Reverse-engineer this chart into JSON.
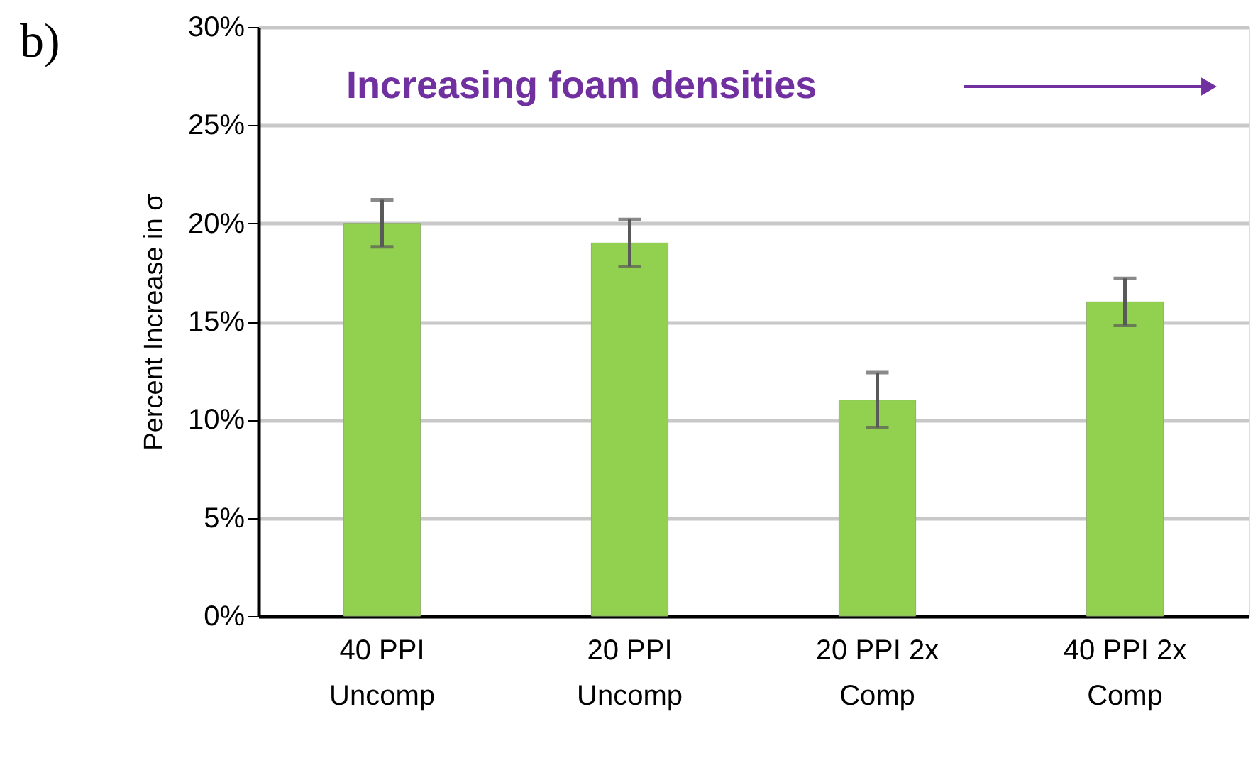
{
  "chart_data": {
    "type": "bar",
    "annotations": [
      "b)",
      "Increasing foam densities"
    ],
    "ylabel": "Percent Increase in σ",
    "categories": [
      "40 PPI Uncomp",
      "20 PPI Uncomp",
      "20 PPI 2x Comp",
      "40 PPI 2x Comp"
    ],
    "values": [
      20,
      19,
      11,
      16
    ],
    "errors": [
      1.2,
      1.2,
      1.4,
      1.2
    ],
    "color": "#92d050",
    "ylim": [
      0,
      30
    ],
    "yticks": [
      {
        "value": 0,
        "label": "0%"
      },
      {
        "value": 5,
        "label": "5%"
      },
      {
        "value": 10,
        "label": "10%"
      },
      {
        "value": 15,
        "label": "15%"
      },
      {
        "value": 20,
        "label": "20%"
      },
      {
        "value": 25,
        "label": "25%"
      },
      {
        "value": 30,
        "label": "30%"
      }
    ],
    "grid": true
  }
}
